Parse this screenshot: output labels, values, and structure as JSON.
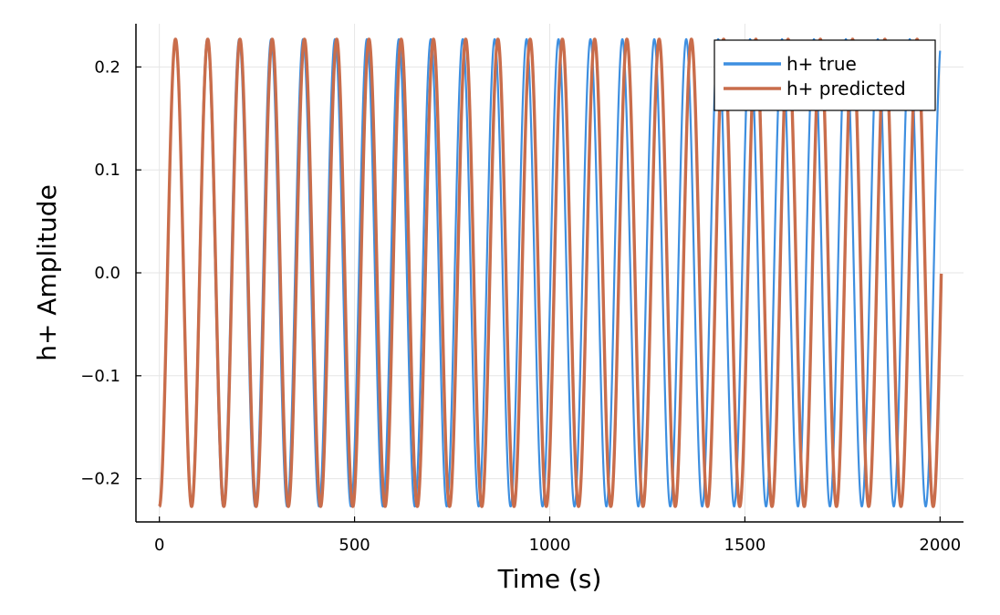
{
  "chart_data": {
    "type": "line",
    "title": "",
    "xlabel": "Time (s)",
    "ylabel": "h+ Amplitude",
    "xlim": [
      -60,
      2060
    ],
    "ylim": [
      -0.242,
      0.242
    ],
    "grid": true,
    "legend_position": "top-right",
    "x_ticks": [
      {
        "value": 0,
        "label": "0"
      },
      {
        "value": 500,
        "label": "500"
      },
      {
        "value": 1000,
        "label": "1000"
      },
      {
        "value": 1500,
        "label": "1500"
      },
      {
        "value": 2000,
        "label": "2000"
      }
    ],
    "y_ticks": [
      {
        "value": -0.2,
        "label": "−0.2"
      },
      {
        "value": -0.1,
        "label": "−0.1"
      },
      {
        "value": 0.0,
        "label": "0.0"
      },
      {
        "value": 0.1,
        "label": "0.1"
      },
      {
        "value": 0.2,
        "label": "0.2"
      }
    ],
    "series": [
      {
        "name": "h+ true",
        "color": "#3e8fe0",
        "line_width": 2.2,
        "amplitude": 0.227,
        "period_s": 81.8,
        "phase_rad": 3.1416,
        "x_start": 0,
        "x_end": 2000
      },
      {
        "name": "h+ predicted",
        "color": "#c96d4b",
        "line_width": 3.4,
        "amplitude": 0.227,
        "period_s": 82.6,
        "phase_rad": 3.1416,
        "x_start": 0,
        "x_end": 2003
      }
    ]
  }
}
